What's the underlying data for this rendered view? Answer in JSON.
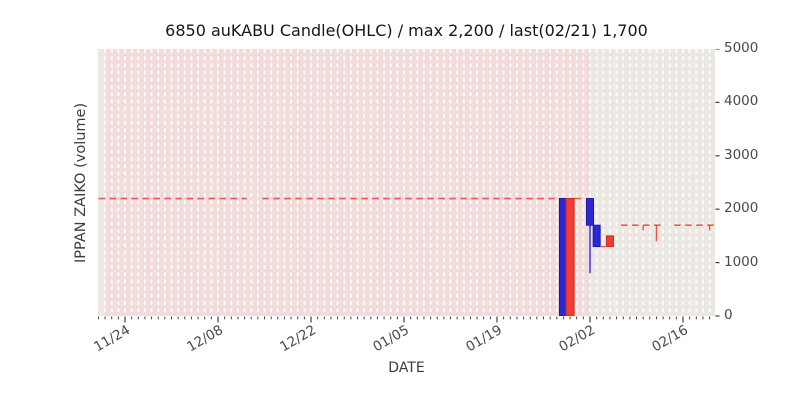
{
  "title": "6850 auKABU Candle(OHLC) / max 2,200 / last(02/21) 1,700",
  "axes": {
    "x_label": "DATE",
    "y_label": "IPPAN ZAIKO (volume)",
    "y_ticks": [
      0,
      1000,
      2000,
      3000,
      4000,
      5000
    ],
    "x_major_ticks": [
      "11/24",
      "12/08",
      "12/22",
      "01/05",
      "01/19",
      "02/02",
      "02/16"
    ]
  },
  "colors": {
    "up": "#f23b31",
    "up_edge": "#cd2a21",
    "down": "#2d27d6",
    "down_edge": "#1c18a8",
    "flat_line": "#ef4136",
    "shade": "#f2dcdb",
    "plot_bg": "#ebe7e3",
    "grid": "#ffffff",
    "tick_mark": "#3f3f3f",
    "tick_text": "#4a4a4a",
    "title_text": "#161616"
  },
  "chart_data": {
    "type": "candlestick-ohlc",
    "title": "6850 auKABU Candle(OHLC) / max 2,200 / last(02/21) 1,700",
    "xlabel": "DATE",
    "ylabel": "IPPAN ZAIKO (volume)",
    "ylim": [
      0,
      5000
    ],
    "grid": "vertical-daily-dashed",
    "x_start": "11/20",
    "x_end": "02/21",
    "shaded_region": {
      "from": "11/21",
      "to": "02/02"
    },
    "flat_segments": [
      {
        "value": 2200,
        "from": "11/20",
        "to": "12/12"
      },
      {
        "value": 2200,
        "from": "12/15",
        "to": "01/28"
      },
      {
        "value": 2200,
        "from": "01/31",
        "to": "02/01"
      },
      {
        "value": 1300,
        "from": "02/04",
        "to": "02/04"
      },
      {
        "value": 1700,
        "from": "02/07",
        "to": "02/13"
      },
      {
        "value": 1700,
        "from": "02/15",
        "to": "02/21"
      }
    ],
    "low_wicks": [
      {
        "date": "02/10",
        "value": 1700,
        "low": 1600
      },
      {
        "date": "02/12",
        "value": 1700,
        "low": 1400
      },
      {
        "date": "02/20",
        "value": 1700,
        "low": 1600
      }
    ],
    "candles": [
      {
        "date": "01/29",
        "open": 2200,
        "high": 2200,
        "low": 0,
        "close": 0,
        "direction": "down",
        "wide": true
      },
      {
        "date": "01/30",
        "open": 0,
        "high": 2200,
        "low": 0,
        "close": 2200,
        "direction": "up",
        "wide": true
      },
      {
        "date": "02/02",
        "open": 2200,
        "high": 2200,
        "low": 800,
        "close": 1700,
        "direction": "down"
      },
      {
        "date": "02/03",
        "open": 1700,
        "high": 1700,
        "low": 1300,
        "close": 1300,
        "direction": "down"
      },
      {
        "date": "02/05",
        "open": 1300,
        "high": 1500,
        "low": 1300,
        "close": 1500,
        "direction": "up"
      }
    ],
    "stats": {
      "max": "2,200",
      "last_date": "02/21",
      "last_value": "1,700"
    }
  }
}
